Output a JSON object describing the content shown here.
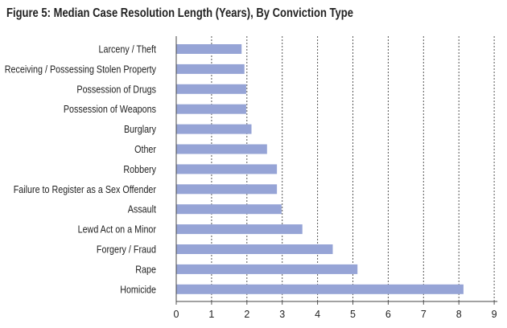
{
  "chart_data": {
    "type": "bar",
    "orientation": "horizontal",
    "title": "Figure 5: Median Case Resolution Length (Years), By Conviction Type",
    "xlabel": "",
    "ylabel": "",
    "categories": [
      "Larceny / Theft",
      "Receiving / Possessing Stolen Property",
      "Possession of Drugs",
      "Possession of Weapons",
      "Burglary",
      "Other",
      "Robbery",
      "Failure to Register as a Sex Offender",
      "Assault",
      "Lewd Act on a Minor",
      "Forgery / Fraud",
      "Rape",
      "Homicide"
    ],
    "values": [
      1.85,
      1.93,
      1.98,
      1.98,
      2.13,
      2.57,
      2.85,
      2.85,
      2.98,
      3.57,
      4.43,
      5.13,
      8.13
    ],
    "xlim": [
      0,
      9
    ],
    "ticks": [
      "0",
      "1",
      "2",
      "3",
      "4",
      "5",
      "6",
      "7",
      "8",
      "9"
    ],
    "grid": true,
    "bar_color": "#96a4d6",
    "grid_color": "#555555"
  }
}
